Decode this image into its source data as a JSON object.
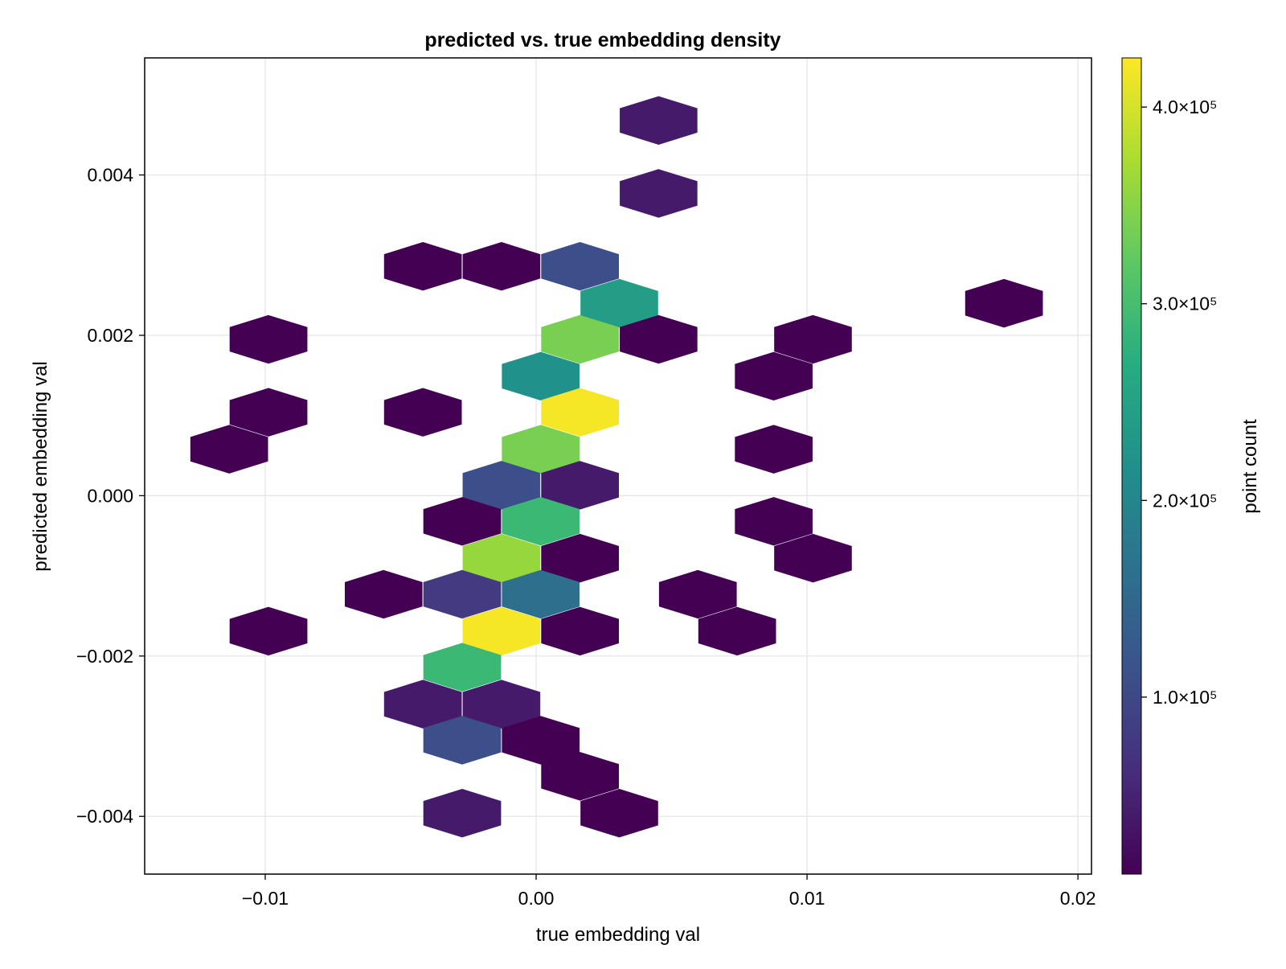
{
  "chart_data": {
    "type": "hexbin",
    "title": "predicted vs. true embedding density",
    "xlabel": "true embedding val",
    "ylabel": "predicted embedding val",
    "xlim": [
      -0.01445,
      0.0205
    ],
    "ylim": [
      -0.00472,
      0.00546
    ],
    "x_ticks": [
      -0.01,
      0.0,
      0.01,
      0.02
    ],
    "x_tick_labels": [
      "−0.01",
      "0.00",
      "0.01",
      "0.02"
    ],
    "y_ticks": [
      0.004,
      0.002,
      0.0,
      -0.002,
      -0.004
    ],
    "y_tick_labels": [
      "0.004",
      "0.002",
      "0.000",
      "−0.002",
      "−0.004"
    ],
    "grid": true,
    "hex_width": 0.00285,
    "hex_height": 0.0006,
    "colorbar": {
      "label": "point count",
      "range": [
        10000,
        425000
      ],
      "ticks": [
        100000,
        200000,
        300000,
        400000
      ],
      "tick_labels": [
        "1.0×10⁵",
        "2.0×10⁵",
        "3.0×10⁵",
        "4.0×10⁵"
      ],
      "colormap": "viridis"
    },
    "bins": [
      {
        "x": 0.00452,
        "y": 0.00468,
        "count": 40000
      },
      {
        "x": 0.00452,
        "y": 0.00377,
        "count": 40000
      },
      {
        "x": -0.00418,
        "y": 0.00286,
        "count": 10000
      },
      {
        "x": -0.00128,
        "y": 0.00286,
        "count": 10000
      },
      {
        "x": 0.00162,
        "y": 0.00286,
        "count": 110000
      },
      {
        "x": 0.00307,
        "y": 0.0024,
        "count": 240000
      },
      {
        "x": 0.01727,
        "y": 0.0024,
        "count": 10000
      },
      {
        "x": -0.00988,
        "y": 0.00195,
        "count": 10000
      },
      {
        "x": 0.00162,
        "y": 0.00195,
        "count": 340000
      },
      {
        "x": 0.00452,
        "y": 0.00195,
        "count": 10000
      },
      {
        "x": 0.01022,
        "y": 0.00195,
        "count": 10000
      },
      {
        "x": 0.00017,
        "y": 0.00149,
        "count": 220000
      },
      {
        "x": 0.00877,
        "y": 0.00149,
        "count": 10000
      },
      {
        "x": -0.00988,
        "y": 0.00104,
        "count": 10000
      },
      {
        "x": -0.00418,
        "y": 0.00104,
        "count": 10000
      },
      {
        "x": 0.00162,
        "y": 0.00104,
        "count": 420000
      },
      {
        "x": -0.01133,
        "y": 0.00058,
        "count": 10000
      },
      {
        "x": 0.00017,
        "y": 0.00058,
        "count": 340000
      },
      {
        "x": 0.00877,
        "y": 0.00058,
        "count": 10000
      },
      {
        "x": -0.00128,
        "y": 0.00013,
        "count": 110000
      },
      {
        "x": 0.00162,
        "y": 0.00013,
        "count": 40000
      },
      {
        "x": -0.00273,
        "y": -0.00032,
        "count": 10000
      },
      {
        "x": 0.00017,
        "y": -0.00032,
        "count": 290000
      },
      {
        "x": 0.00877,
        "y": -0.00032,
        "count": 10000
      },
      {
        "x": -0.00128,
        "y": -0.00078,
        "count": 360000
      },
      {
        "x": 0.00162,
        "y": -0.00078,
        "count": 10000
      },
      {
        "x": 0.01022,
        "y": -0.00078,
        "count": 10000
      },
      {
        "x": -0.00563,
        "y": -0.00123,
        "count": 10000
      },
      {
        "x": -0.00273,
        "y": -0.00123,
        "count": 80000
      },
      {
        "x": 0.00017,
        "y": -0.00123,
        "count": 160000
      },
      {
        "x": 0.00597,
        "y": -0.00123,
        "count": 10000
      },
      {
        "x": -0.00988,
        "y": -0.00169,
        "count": 10000
      },
      {
        "x": -0.00128,
        "y": -0.00169,
        "count": 420000
      },
      {
        "x": 0.00162,
        "y": -0.00169,
        "count": 10000
      },
      {
        "x": 0.00742,
        "y": -0.00169,
        "count": 10000
      },
      {
        "x": -0.00273,
        "y": -0.00214,
        "count": 290000
      },
      {
        "x": -0.00418,
        "y": -0.0026,
        "count": 40000
      },
      {
        "x": -0.00128,
        "y": -0.0026,
        "count": 40000
      },
      {
        "x": -0.00273,
        "y": -0.00305,
        "count": 110000
      },
      {
        "x": 0.00017,
        "y": -0.00305,
        "count": 10000
      },
      {
        "x": 0.00162,
        "y": -0.0035,
        "count": 10000
      },
      {
        "x": -0.00273,
        "y": -0.00396,
        "count": 40000
      },
      {
        "x": 0.00307,
        "y": -0.00396,
        "count": 10000
      }
    ]
  }
}
